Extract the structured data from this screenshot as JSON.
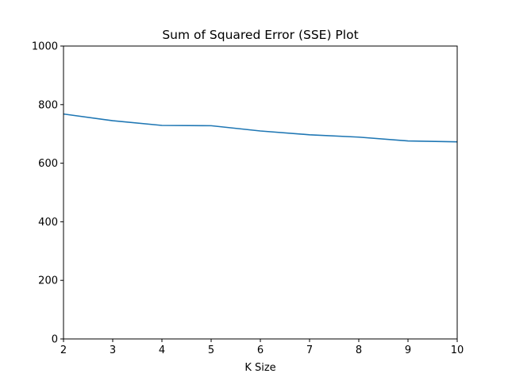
{
  "chart_data": {
    "type": "line",
    "title": "Sum of Squared Error (SSE) Plot",
    "xlabel": "K Size",
    "ylabel": "",
    "xlim": [
      2,
      10
    ],
    "ylim": [
      0,
      1000
    ],
    "xticks": [
      2,
      3,
      4,
      5,
      6,
      7,
      8,
      9,
      10
    ],
    "yticks": [
      0,
      200,
      400,
      600,
      800,
      1000
    ],
    "grid": false,
    "series": [
      {
        "color": "#1f77b4",
        "x": [
          2,
          3,
          4,
          5,
          6,
          7,
          8,
          9,
          10
        ],
        "y": [
          768,
          745,
          729,
          728,
          710,
          697,
          689,
          676,
          673
        ]
      }
    ]
  }
}
